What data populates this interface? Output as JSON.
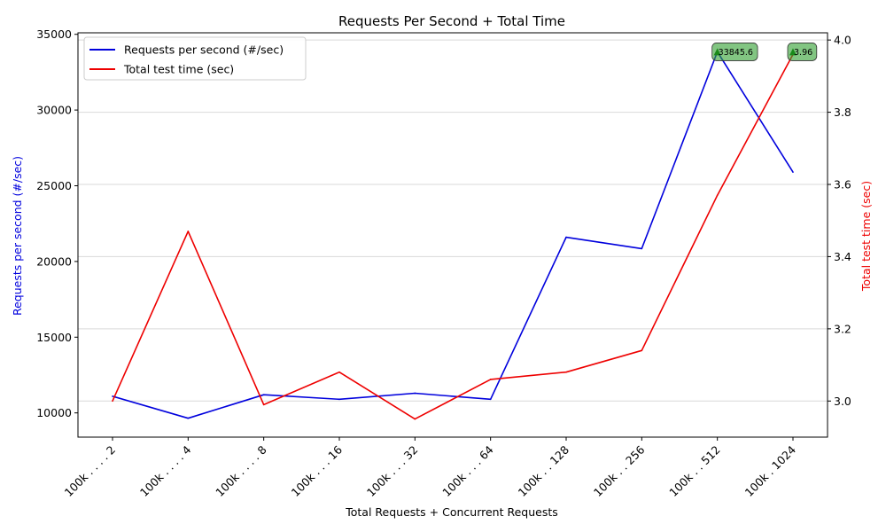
{
  "chart_data": {
    "type": "line",
    "title": "Requests Per Second + Total Time",
    "xlabel": "Total Requests + Concurrent Requests",
    "ylabel_left": "Requests per second (#/sec)",
    "ylabel_right": "Total test time (sec)",
    "categories": [
      "100k . . . . 2",
      "100k . . . . 4",
      "100k . . . . 8",
      "100k . . . 16",
      "100k . . . 32",
      "100k . . . 64",
      "100k . . 128",
      "100k . . 256",
      "100k . . 512",
      "100k . 1024"
    ],
    "ylim_left": [
      8400,
      35100
    ],
    "ylim_right": [
      2.9,
      4.02
    ],
    "yticks_left": [
      10000,
      15000,
      20000,
      25000,
      30000,
      35000
    ],
    "yticks_right": [
      3.0,
      3.2,
      3.4,
      3.6,
      3.8,
      4.0
    ],
    "yticks_right_labels": [
      "3.0",
      "3.2",
      "3.4",
      "3.6",
      "3.8",
      "4.0"
    ],
    "grid": "horizontal",
    "legend_position": "top-left",
    "series": [
      {
        "name": "Requests per second (#/sec)",
        "axis": "left",
        "color": "#0000dd",
        "values": [
          11100,
          9650,
          11200,
          10900,
          11300,
          10900,
          21600,
          20850,
          33845.6,
          25900
        ]
      },
      {
        "name": "Total test time (sec)",
        "axis": "right",
        "color": "#ee0000",
        "values": [
          3.0,
          3.47,
          2.99,
          3.08,
          2.95,
          3.06,
          3.08,
          3.14,
          3.57,
          3.96
        ]
      }
    ],
    "annotations": [
      {
        "category_index": 8,
        "text": "33845.6",
        "color": "#2e9e2e",
        "marker": "triangle"
      },
      {
        "category_index": 9,
        "text": "3.96",
        "color": "#2e9e2e",
        "marker": "triangle"
      }
    ]
  }
}
